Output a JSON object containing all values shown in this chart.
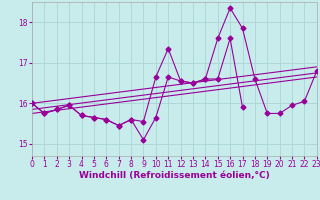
{
  "xlabel": "Windchill (Refroidissement éolien,°C)",
  "bg_color": "#c8ecec",
  "grid_color": "#aad4d4",
  "line_color": "#990099",
  "xlim": [
    0,
    23
  ],
  "ylim": [
    14.7,
    18.5
  ],
  "yticks": [
    15,
    16,
    17,
    18
  ],
  "xticks": [
    0,
    1,
    2,
    3,
    4,
    5,
    6,
    7,
    8,
    9,
    10,
    11,
    12,
    13,
    14,
    15,
    16,
    17,
    18,
    19,
    20,
    21,
    22,
    23
  ],
  "line1_x": [
    0,
    1,
    2,
    3,
    4,
    5,
    6,
    7,
    8,
    9,
    10,
    11,
    12,
    13,
    14,
    15,
    16,
    17,
    18,
    19,
    20,
    21,
    22,
    23
  ],
  "line1_y": [
    16.0,
    15.75,
    15.85,
    15.95,
    15.7,
    15.65,
    15.6,
    15.45,
    15.6,
    15.1,
    15.65,
    16.65,
    16.55,
    16.5,
    16.6,
    17.6,
    18.35,
    17.85,
    16.6,
    15.75,
    15.75,
    15.95,
    16.05,
    16.8
  ],
  "line2_x": [
    0,
    1,
    2,
    3,
    4,
    5,
    6,
    7,
    8,
    9,
    10,
    11,
    12,
    13,
    14,
    15,
    16,
    17
  ],
  "line2_y": [
    16.0,
    15.75,
    15.85,
    15.95,
    15.7,
    15.65,
    15.6,
    15.45,
    15.6,
    15.55,
    16.65,
    17.35,
    16.55,
    16.5,
    16.6,
    16.6,
    17.6,
    15.9
  ],
  "line3_x": [
    0,
    23
  ],
  "line3_y": [
    15.85,
    16.75
  ],
  "line4_x": [
    0,
    23
  ],
  "line4_y": [
    16.0,
    16.9
  ],
  "line5_x": [
    0,
    23
  ],
  "line5_y": [
    15.75,
    16.65
  ],
  "marker": "D",
  "markersize": 2.5,
  "linewidth": 0.8,
  "label_fontsize": 6.5,
  "tick_fontsize": 5.5
}
